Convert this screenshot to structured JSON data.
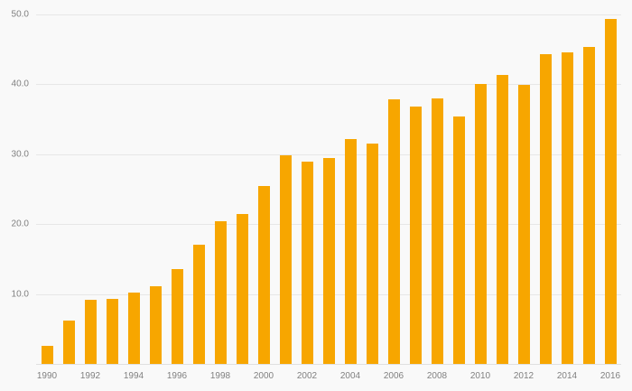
{
  "chart_data": {
    "type": "bar",
    "title": "",
    "xlabel": "",
    "ylabel": "",
    "categories": [
      1990,
      1991,
      1992,
      1993,
      1994,
      1995,
      1996,
      1997,
      1998,
      1999,
      2000,
      2001,
      2002,
      2003,
      2004,
      2005,
      2006,
      2007,
      2008,
      2009,
      2010,
      2011,
      2012,
      2013,
      2014,
      2015,
      2016
    ],
    "values": [
      2.6,
      6.2,
      9.2,
      9.3,
      10.2,
      11.1,
      13.6,
      17.1,
      20.4,
      21.4,
      25.4,
      29.8,
      29.0,
      29.4,
      32.2,
      31.5,
      37.9,
      36.8,
      38.0,
      35.4,
      40.0,
      41.3,
      39.9,
      44.3,
      44.6,
      45.3,
      49.4
    ],
    "ylim": [
      0,
      50
    ],
    "yticks": [
      10,
      20,
      30,
      40,
      50
    ],
    "ytick_labels": [
      "10.0",
      "20.0",
      "30.0",
      "40.0",
      "50.0"
    ],
    "xtick_labels": [
      "1990",
      "1992",
      "1994",
      "1996",
      "1998",
      "2000",
      "2002",
      "2004",
      "2006",
      "2008",
      "2010",
      "2012",
      "2014",
      "2016"
    ],
    "grid": true,
    "legend_position": "none",
    "colors": {
      "bar": "#F7A600",
      "background": "#f9f9f9",
      "gridline": "#e7e7e7",
      "axis_text": "#808080"
    }
  }
}
